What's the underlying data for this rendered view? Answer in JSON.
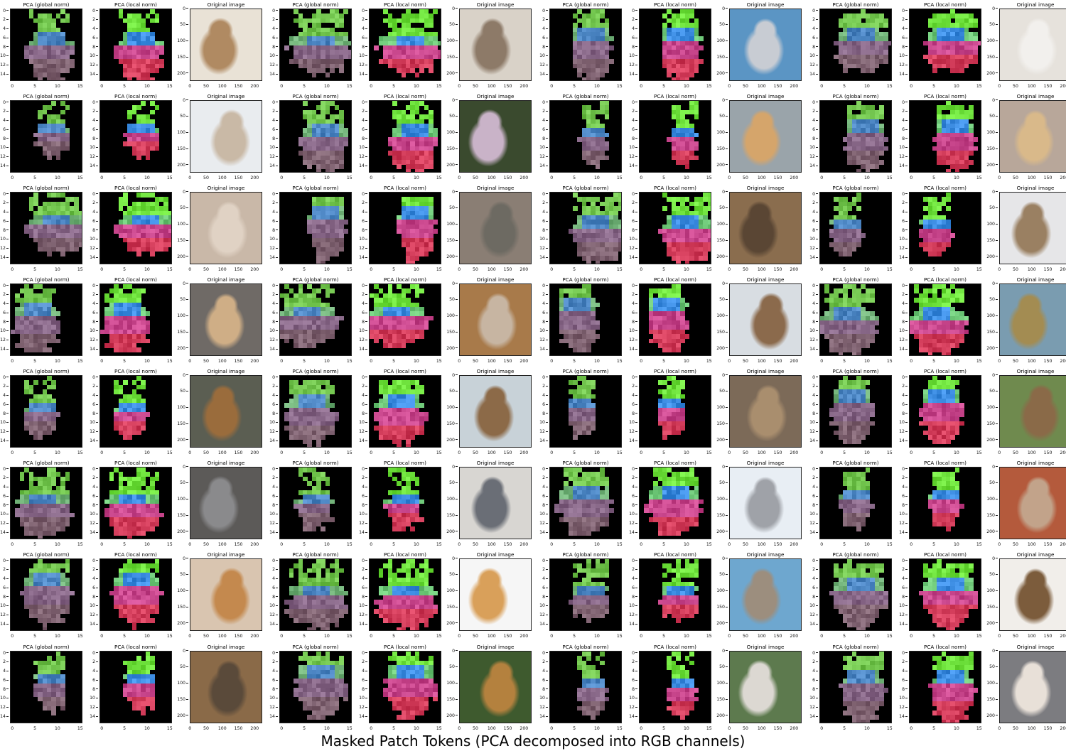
{
  "figure": {
    "title": "Masked Patch Tokens (PCA decomposed into RGB channels)",
    "panel_titles": [
      "PCA (global norm)",
      "PCA (local norm)",
      "Original image"
    ],
    "pca_ticks": [
      "0",
      "2",
      "4",
      "6",
      "8",
      "10",
      "12",
      "14"
    ],
    "pca_xticks": [
      "0",
      "5",
      "10",
      "15"
    ],
    "image_yticks": [
      "0",
      "50",
      "100",
      "150",
      "200"
    ],
    "image_xticks": [
      "0",
      "50",
      "100",
      "150",
      "200"
    ],
    "rows": 8,
    "groups_per_row": 4,
    "colors": {
      "background": "#ffffff",
      "mask": "#000000",
      "head_green": "#6fe33a",
      "face_blue": "#3f8fe0",
      "body_pink": "#d6467a",
      "body_purple": "#7a4b9a",
      "muted_brown": "#8a6a55"
    }
  }
}
